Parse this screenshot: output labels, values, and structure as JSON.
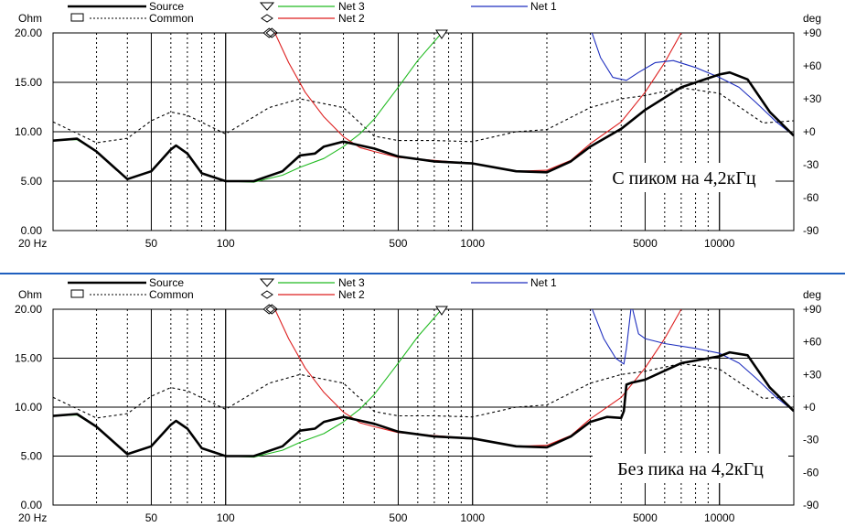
{
  "legend": {
    "source": "Source",
    "common": "Common",
    "net3": "Net 3",
    "net2": "Net 2",
    "net1": "Net 1"
  },
  "colors": {
    "source": "#000000",
    "common": "#000000",
    "net1": "#1f2fbf",
    "net2": "#dd1f1f",
    "net3": "#22bb22",
    "separator": "#1f5fbf"
  },
  "chart_data": [
    {
      "type": "line",
      "caption": "С пиком на 4,2кГц",
      "ylabel_left": "Ohm",
      "ylabel_right": "deg",
      "x_scale": "log",
      "xlim": [
        20,
        20000
      ],
      "ylim_left": [
        0,
        20
      ],
      "ylim_right": [
        -90,
        90
      ],
      "x_ticks": [
        {
          "v": 20,
          "t": "20 Hz"
        },
        {
          "v": 50,
          "t": "50"
        },
        {
          "v": 100,
          "t": "100"
        },
        {
          "v": 500,
          "t": "500"
        },
        {
          "v": 1000,
          "t": "1000"
        },
        {
          "v": 5000,
          "t": "5000"
        },
        {
          "v": 10000,
          "t": "10000"
        }
      ],
      "y_ticks_left": [
        {
          "v": 0,
          "t": "0.00"
        },
        {
          "v": 5,
          "t": "5.00"
        },
        {
          "v": 10,
          "t": "10.00"
        },
        {
          "v": 15,
          "t": "15.00"
        },
        {
          "v": 20,
          "t": "20.00"
        }
      ],
      "y_ticks_right": [
        {
          "v": -90,
          "t": "-90"
        },
        {
          "v": -60,
          "t": "-60"
        },
        {
          "v": -30,
          "t": "-30"
        },
        {
          "v": 0,
          "t": "+0"
        },
        {
          "v": 30,
          "t": "+30"
        },
        {
          "v": 60,
          "t": "+60"
        },
        {
          "v": 90,
          "t": "+90"
        }
      ],
      "series": [
        {
          "key": "common",
          "axis": "right",
          "x": [
            20,
            30,
            40,
            50,
            60,
            70,
            100,
            150,
            200,
            300,
            400,
            500,
            700,
            1000,
            1500,
            2000,
            3000,
            4000,
            5000,
            7000,
            10000,
            15000,
            20000
          ],
          "y": [
            9,
            -10,
            -6,
            10,
            18,
            15,
            -2,
            22,
            30,
            22,
            -4,
            -8,
            -8,
            -9,
            0,
            2,
            22,
            30,
            33,
            40,
            35,
            8,
            10
          ]
        },
        {
          "key": "net3",
          "axis": "left",
          "x": [
            20,
            25,
            30,
            40,
            50,
            60,
            63,
            70,
            80,
            100,
            130,
            170,
            200,
            250,
            300,
            350,
            400,
            500,
            600,
            750
          ],
          "y": [
            9.1,
            9.2,
            8.0,
            5.2,
            6.0,
            8.2,
            8.6,
            7.8,
            5.8,
            5.0,
            4.9,
            5.6,
            6.4,
            7.3,
            8.5,
            9.8,
            11.3,
            14.5,
            17.2,
            20
          ]
        },
        {
          "key": "net2",
          "axis": "left",
          "x": [
            155,
            180,
            210,
            250,
            300,
            350,
            400,
            500,
            700,
            1000,
            1500,
            2000,
            2500,
            3000,
            4000,
            5000,
            6000,
            7000
          ],
          "y": [
            20.5,
            17.0,
            14.0,
            11.5,
            9.5,
            8.4,
            8.0,
            7.4,
            7.1,
            6.8,
            6.0,
            6.1,
            7.1,
            8.8,
            11.0,
            14.0,
            17.0,
            20
          ]
        },
        {
          "key": "net1",
          "axis": "left",
          "x": [
            3000,
            3300,
            3700,
            4200,
            4700,
            5500,
            6500,
            8000,
            10000,
            12000,
            14000,
            17000,
            20000
          ],
          "y": [
            20.5,
            17.5,
            15.5,
            15.2,
            16.0,
            17.0,
            17.2,
            16.5,
            15.5,
            14.5,
            13.0,
            11.0,
            9.6
          ]
        },
        {
          "key": "source",
          "axis": "left",
          "x": [
            20,
            25,
            30,
            40,
            50,
            60,
            63,
            70,
            80,
            100,
            130,
            170,
            200,
            230,
            250,
            300,
            400,
            500,
            700,
            1000,
            1500,
            2000,
            2500,
            3000,
            4000,
            5000,
            7000,
            10000,
            11000,
            13000,
            16000,
            20000
          ],
          "y": [
            9.1,
            9.3,
            8.0,
            5.2,
            6.0,
            8.2,
            8.6,
            7.8,
            5.8,
            5.0,
            5.0,
            6.0,
            7.6,
            7.8,
            8.5,
            9.0,
            8.3,
            7.5,
            7.0,
            6.8,
            6.0,
            5.9,
            7.0,
            8.5,
            10.3,
            12.2,
            14.5,
            15.8,
            16.0,
            15.3,
            12.0,
            9.6
          ]
        }
      ],
      "markers": [
        {
          "shape": "diamond",
          "x": 150,
          "y": 20
        },
        {
          "shape": "triangle",
          "x": 750,
          "y": 20
        }
      ]
    },
    {
      "type": "line",
      "caption": "Без пика на 4,2кГц",
      "ylabel_left": "Ohm",
      "ylabel_right": "deg",
      "x_scale": "log",
      "xlim": [
        20,
        20000
      ],
      "ylim_left": [
        0,
        20
      ],
      "ylim_right": [
        -90,
        90
      ],
      "x_ticks": [
        {
          "v": 20,
          "t": "20 Hz"
        },
        {
          "v": 50,
          "t": "50"
        },
        {
          "v": 100,
          "t": "100"
        },
        {
          "v": 500,
          "t": "500"
        },
        {
          "v": 1000,
          "t": "1000"
        },
        {
          "v": 5000,
          "t": "5000"
        },
        {
          "v": 10000,
          "t": "10000"
        }
      ],
      "y_ticks_left": [
        {
          "v": 0,
          "t": "0.00"
        },
        {
          "v": 5,
          "t": "5.00"
        },
        {
          "v": 10,
          "t": "10.00"
        },
        {
          "v": 15,
          "t": "15.00"
        },
        {
          "v": 20,
          "t": "20.00"
        }
      ],
      "y_ticks_right": [
        {
          "v": -90,
          "t": "-90"
        },
        {
          "v": -60,
          "t": "-60"
        },
        {
          "v": -30,
          "t": "-30"
        },
        {
          "v": 0,
          "t": "+0"
        },
        {
          "v": 30,
          "t": "+30"
        },
        {
          "v": 60,
          "t": "+60"
        },
        {
          "v": 90,
          "t": "+90"
        }
      ],
      "series": [
        {
          "key": "common",
          "axis": "right",
          "x": [
            20,
            30,
            40,
            50,
            60,
            70,
            100,
            150,
            200,
            300,
            400,
            500,
            700,
            1000,
            1500,
            2000,
            3000,
            4000,
            5000,
            7000,
            10000,
            15000,
            20000
          ],
          "y": [
            9,
            -10,
            -6,
            10,
            18,
            15,
            -2,
            22,
            30,
            22,
            -4,
            -8,
            -8,
            -9,
            0,
            2,
            22,
            30,
            33,
            40,
            35,
            8,
            10
          ]
        },
        {
          "key": "net3",
          "axis": "left",
          "x": [
            20,
            25,
            30,
            40,
            50,
            60,
            63,
            70,
            80,
            100,
            130,
            170,
            200,
            250,
            300,
            350,
            400,
            500,
            600,
            750
          ],
          "y": [
            9.1,
            9.2,
            8.0,
            5.2,
            6.0,
            8.2,
            8.6,
            7.8,
            5.8,
            5.0,
            4.9,
            5.6,
            6.4,
            7.3,
            8.5,
            9.8,
            11.3,
            14.5,
            17.2,
            20
          ]
        },
        {
          "key": "net2",
          "axis": "left",
          "x": [
            155,
            180,
            210,
            250,
            300,
            350,
            400,
            500,
            700,
            1000,
            1500,
            2000,
            2500,
            3000,
            4000,
            5000,
            6000,
            7000
          ],
          "y": [
            20.5,
            17.0,
            14.0,
            11.5,
            9.5,
            8.4,
            8.0,
            7.4,
            7.1,
            6.8,
            6.0,
            6.1,
            7.1,
            8.8,
            11.0,
            14.0,
            17.0,
            20
          ]
        },
        {
          "key": "net1",
          "axis": "left",
          "x": [
            3000,
            3400,
            3800,
            4100,
            4200,
            4400,
            4700,
            5000,
            6000,
            8000,
            10000,
            12000,
            14000,
            17000,
            20000
          ],
          "y": [
            20.5,
            17.0,
            15.0,
            14.4,
            16.0,
            20.5,
            17.5,
            17.0,
            16.5,
            16.0,
            15.5,
            14.5,
            13.0,
            11.0,
            9.6
          ]
        },
        {
          "key": "source",
          "axis": "left",
          "x": [
            20,
            25,
            30,
            40,
            50,
            60,
            63,
            70,
            80,
            100,
            130,
            170,
            200,
            230,
            250,
            300,
            400,
            500,
            700,
            1000,
            1500,
            2000,
            2500,
            3000,
            3500,
            4000,
            4100,
            4200,
            4400,
            5000,
            7000,
            10000,
            11000,
            13000,
            16000,
            20000
          ],
          "y": [
            9.1,
            9.3,
            8.0,
            5.2,
            6.0,
            8.2,
            8.6,
            7.8,
            5.8,
            5.0,
            5.0,
            6.0,
            7.6,
            7.8,
            8.5,
            9.0,
            8.3,
            7.5,
            7.0,
            6.8,
            6.0,
            5.9,
            7.0,
            8.5,
            9.0,
            8.9,
            9.6,
            12.3,
            12.5,
            12.8,
            14.5,
            15.2,
            15.6,
            15.3,
            12.0,
            9.6
          ]
        }
      ],
      "markers": [
        {
          "shape": "diamond",
          "x": 150,
          "y": 20
        },
        {
          "shape": "triangle",
          "x": 750,
          "y": 20
        }
      ]
    }
  ]
}
